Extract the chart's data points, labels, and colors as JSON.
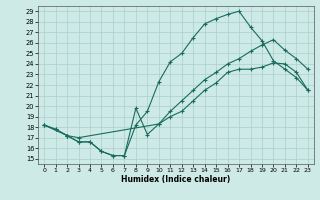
{
  "xlabel": "Humidex (Indice chaleur)",
  "bg_color": "#cdeae6",
  "grid_color": "#aacfcb",
  "line_color": "#1a6b5e",
  "xlim": [
    -0.5,
    23.5
  ],
  "ylim": [
    14.5,
    29.5
  ],
  "xticks": [
    0,
    1,
    2,
    3,
    4,
    5,
    6,
    7,
    8,
    9,
    10,
    11,
    12,
    13,
    14,
    15,
    16,
    17,
    18,
    19,
    20,
    21,
    22,
    23
  ],
  "yticks": [
    15,
    16,
    17,
    18,
    19,
    20,
    21,
    22,
    23,
    24,
    25,
    26,
    27,
    28,
    29
  ],
  "line_top_x": [
    0,
    1,
    2,
    3,
    4,
    5,
    6,
    7,
    8,
    9,
    10,
    11,
    12,
    13,
    14,
    15,
    16,
    17,
    18,
    19,
    20,
    21,
    22,
    23
  ],
  "line_top_y": [
    18.2,
    17.8,
    17.2,
    16.6,
    16.6,
    15.7,
    15.3,
    15.3,
    18.2,
    19.5,
    22.3,
    24.2,
    25.0,
    26.5,
    27.8,
    28.3,
    28.7,
    29.0,
    27.5,
    26.2,
    24.3,
    23.5,
    22.7,
    21.5
  ],
  "line_mid_x": [
    0,
    2,
    3,
    10,
    11,
    12,
    13,
    14,
    15,
    16,
    17,
    18,
    19,
    20,
    21,
    22,
    23
  ],
  "line_mid_y": [
    18.2,
    17.2,
    17.0,
    18.3,
    19.5,
    20.5,
    21.5,
    22.5,
    23.2,
    24.0,
    24.5,
    25.2,
    25.8,
    26.3,
    25.3,
    24.5,
    23.5
  ],
  "line_bot_x": [
    0,
    1,
    2,
    3,
    4,
    5,
    6,
    7,
    8,
    9,
    10,
    11,
    12,
    13,
    14,
    15,
    16,
    17,
    18,
    19,
    20,
    21,
    22,
    23
  ],
  "line_bot_y": [
    18.2,
    17.8,
    17.2,
    16.6,
    16.6,
    15.7,
    15.3,
    15.3,
    19.8,
    17.3,
    18.3,
    19.0,
    19.5,
    20.5,
    21.5,
    22.2,
    23.2,
    23.5,
    23.5,
    23.7,
    24.1,
    24.0,
    23.2,
    21.5
  ]
}
